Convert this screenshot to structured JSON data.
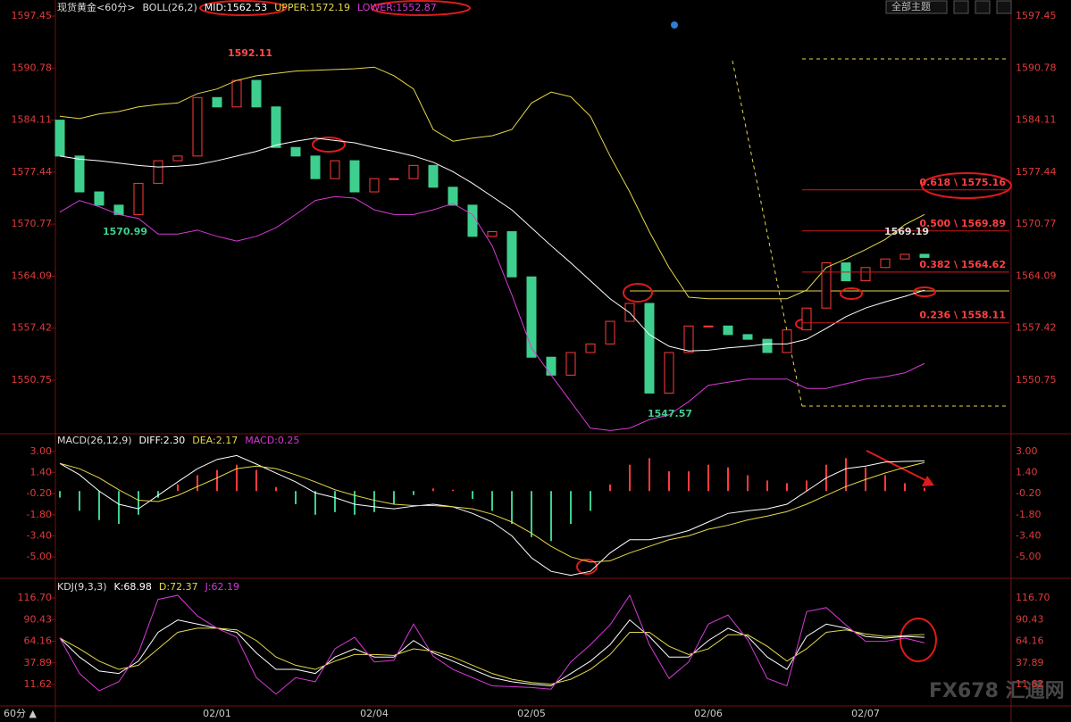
{
  "chart_data": [
    {
      "type": "candlestick",
      "title": "现货黄金<60分>",
      "indicator": "BOLL(26,2)",
      "categories": [
        null,
        null,
        null,
        null,
        null,
        null,
        null,
        null,
        "02/01",
        null,
        null,
        null,
        null,
        null,
        null,
        null,
        "02/04",
        null,
        null,
        null,
        null,
        null,
        null,
        null,
        "02/05",
        null,
        null,
        null,
        null,
        null,
        null,
        null,
        null,
        "02/06",
        null,
        null,
        null,
        null,
        null,
        null,
        null,
        "02/07",
        null,
        null,
        null
      ],
      "open": [
        1584.1,
        1579.5,
        1574.9,
        1573.2,
        1572.0,
        1576.0,
        1578.9,
        1579.5,
        1587.0,
        1585.8,
        1589.2,
        1585.8,
        1580.6,
        1579.5,
        1576.6,
        1578.9,
        1574.9,
        1576.6,
        1576.6,
        1578.3,
        1575.5,
        1573.2,
        1569.2,
        1569.8,
        1564.0,
        1553.7,
        1551.4,
        1554.3,
        1555.4,
        1558.3,
        1560.6,
        1549.1,
        1554.3,
        1557.7,
        1557.7,
        1556.6,
        1556.0,
        1554.3,
        1557.2,
        1560.0,
        1565.8,
        1563.5,
        1565.2,
        1566.3,
        1566.9
      ],
      "close": [
        1579.5,
        1574.9,
        1573.2,
        1572.0,
        1576.0,
        1578.9,
        1579.5,
        1587.0,
        1585.8,
        1589.2,
        1585.8,
        1580.6,
        1579.5,
        1576.6,
        1578.9,
        1574.9,
        1576.6,
        1576.6,
        1578.3,
        1575.5,
        1573.2,
        1569.2,
        1569.8,
        1564.0,
        1553.7,
        1551.4,
        1554.3,
        1555.4,
        1558.3,
        1560.6,
        1549.1,
        1554.3,
        1557.7,
        1557.7,
        1556.6,
        1556.0,
        1554.3,
        1557.2,
        1560.0,
        1565.8,
        1563.5,
        1565.2,
        1566.3,
        1566.9,
        1566.5
      ],
      "up_color": "#ff3b3b",
      "down_color": "#3ecf8e",
      "series": [
        {
          "name": "MID:1562.53",
          "color": "#ffffff",
          "values": [
            1579.5,
            1579.1,
            1578.9,
            1578.6,
            1578.3,
            1578.1,
            1578.2,
            1578.4,
            1578.9,
            1579.5,
            1580.1,
            1580.9,
            1581.4,
            1581.8,
            1581.5,
            1581.2,
            1580.6,
            1580.1,
            1579.5,
            1578.7,
            1577.5,
            1576.0,
            1574.3,
            1572.6,
            1570.3,
            1568.0,
            1565.8,
            1563.5,
            1561.2,
            1559.4,
            1556.6,
            1555.1,
            1554.5,
            1554.6,
            1554.9,
            1555.1,
            1555.4,
            1555.4,
            1556.0,
            1557.4,
            1558.9,
            1560.0,
            1560.8,
            1561.5,
            1562.3
          ]
        },
        {
          "name": "UPPER:1572.19",
          "color": "#e6d84a",
          "values": [
            1584.6,
            1584.3,
            1584.9,
            1585.2,
            1585.8,
            1586.1,
            1586.3,
            1587.5,
            1588.1,
            1589.2,
            1589.8,
            1590.1,
            1590.4,
            1590.5,
            1590.6,
            1590.7,
            1590.9,
            1589.8,
            1588.1,
            1582.9,
            1581.4,
            1581.8,
            1582.1,
            1582.9,
            1586.3,
            1587.7,
            1587.1,
            1584.6,
            1579.5,
            1574.9,
            1569.8,
            1565.2,
            1561.4,
            1561.2,
            1561.2,
            1561.2,
            1561.2,
            1561.2,
            1562.3,
            1565.2,
            1566.3,
            1567.5,
            1568.8,
            1570.7,
            1572.0
          ]
        },
        {
          "name": "LOWER:1552.87",
          "color": "#d63ad6",
          "values": [
            1572.3,
            1573.8,
            1573.0,
            1572.0,
            1571.5,
            1569.5,
            1569.5,
            1570.0,
            1569.2,
            1568.6,
            1569.2,
            1570.3,
            1572.0,
            1573.8,
            1574.3,
            1574.1,
            1572.6,
            1572.0,
            1572.0,
            1572.6,
            1573.4,
            1572.0,
            1568.0,
            1561.7,
            1554.9,
            1551.4,
            1548.0,
            1544.6,
            1544.3,
            1544.6,
            1545.7,
            1546.3,
            1548.0,
            1550.1,
            1550.5,
            1550.9,
            1550.9,
            1550.9,
            1549.7,
            1549.7,
            1550.3,
            1550.9,
            1551.2,
            1551.7,
            1552.9
          ]
        }
      ],
      "ylim": [
        1544.0,
        1597.45
      ],
      "yticks": [
        1597.45,
        1590.78,
        1584.11,
        1577.44,
        1570.77,
        1564.09,
        1557.42,
        1550.75
      ],
      "annotations": [
        "1592.11",
        "1570.99",
        "1547.57",
        "1569.19"
      ],
      "fib_levels": [
        {
          "value": 1575.16,
          "label": "0.618 \\ 1575.16"
        },
        {
          "value": 1569.89,
          "label": "0.500 \\ 1569.89"
        },
        {
          "value": 1564.62,
          "label": "0.382 \\ 1564.62"
        },
        {
          "value": 1558.11,
          "label": "0.236 \\ 1558.11"
        }
      ]
    },
    {
      "type": "macd",
      "title": "MACD(26,12,9)",
      "series": [
        {
          "name": "DIFF:2.30",
          "color": "#ffffff",
          "values": [
            2.1,
            1.24,
            0,
            -1.0,
            -1.35,
            -0.33,
            0.7,
            1.7,
            2.4,
            2.7,
            2.05,
            1.37,
            0.7,
            -0.14,
            -0.5,
            -1.0,
            -1.2,
            -1.35,
            -1.15,
            -1.0,
            -1.2,
            -1.7,
            -2.35,
            -3.4,
            -5.07,
            -6.1,
            -6.4,
            -6.1,
            -4.7,
            -3.7,
            -3.7,
            -3.4,
            -3.0,
            -2.35,
            -1.7,
            -1.5,
            -1.35,
            -1.0,
            0,
            1.0,
            1.7,
            1.9,
            2.2,
            2.25,
            2.3
          ]
        },
        {
          "name": "DEA:2.17",
          "color": "#e6d84a",
          "values": [
            2.1,
            1.7,
            1.0,
            0.1,
            -0.7,
            -0.8,
            -0.33,
            0.34,
            1.0,
            1.7,
            1.9,
            1.7,
            1.24,
            0.7,
            0.1,
            -0.33,
            -0.7,
            -1.0,
            -1.1,
            -1.1,
            -1.2,
            -1.35,
            -1.76,
            -2.35,
            -3.2,
            -4.2,
            -5.0,
            -5.4,
            -5.3,
            -4.7,
            -4.2,
            -3.7,
            -3.4,
            -2.9,
            -2.6,
            -2.2,
            -1.9,
            -1.56,
            -1.0,
            -0.33,
            0.34,
            0.88,
            1.37,
            1.8,
            2.17
          ]
        },
        {
          "name": "MACD:0.25",
          "color": "#d63ad6",
          "values": [
            -0.5,
            -1.5,
            -2.2,
            -2.5,
            -1.8,
            -0.5,
            0.5,
            1.2,
            1.6,
            2.0,
            1.6,
            0.3,
            -1.0,
            -1.8,
            -1.6,
            -1.8,
            -1.6,
            -1.0,
            -0.3,
            0.2,
            0.1,
            -0.6,
            -1.5,
            -2.5,
            -3.5,
            -3.8,
            -2.5,
            -1.5,
            0.5,
            2.0,
            2.5,
            1.5,
            1.5,
            2.0,
            1.8,
            1.2,
            0.8,
            0.6,
            0.8,
            2.0,
            2.5,
            1.8,
            1.2,
            0.6,
            0.25
          ]
        }
      ],
      "up_color": "#ff3b3b",
      "down_color": "#3ecf8e",
      "ylim": [
        -6.63,
        4.22
      ],
      "yticks": [
        {
          "value": 3,
          "label": "3.00"
        },
        {
          "value": 1.4,
          "label": "1.40"
        },
        {
          "value": -0.2,
          "label": "-0.20"
        },
        {
          "value": -1.8,
          "label": "-1.80"
        },
        {
          "value": -3.4,
          "label": "-3.40"
        },
        {
          "value": -5,
          "label": "-5.00"
        }
      ]
    },
    {
      "type": "line",
      "title": "KDJ(9,3,3)",
      "series": [
        {
          "name": "K:68.98",
          "color": "#ffffff",
          "values": [
            68,
            45,
            28,
            25,
            40,
            75,
            90,
            85,
            80,
            75,
            50,
            30,
            30,
            25,
            45,
            55,
            45,
            45,
            65,
            50,
            40,
            30,
            20,
            15,
            12,
            10,
            25,
            40,
            60,
            90,
            70,
            45,
            45,
            65,
            80,
            70,
            45,
            30,
            70,
            85,
            80,
            70,
            68,
            70,
            68.98
          ]
        },
        {
          "name": "D:72.37",
          "color": "#e6d84a",
          "values": [
            68,
            55,
            40,
            30,
            35,
            55,
            75,
            80,
            80,
            78,
            65,
            45,
            35,
            30,
            40,
            48,
            48,
            47,
            55,
            52,
            45,
            35,
            25,
            18,
            14,
            12,
            18,
            30,
            48,
            75,
            75,
            58,
            48,
            55,
            72,
            72,
            58,
            40,
            55,
            75,
            78,
            73,
            70,
            71,
            72.37
          ]
        },
        {
          "name": "J:62.19",
          "color": "#d63ad6",
          "values": [
            68,
            25,
            4,
            15,
            50,
            115,
            120,
            95,
            80,
            69,
            20,
            0,
            20,
            15,
            55,
            69,
            39,
            41,
            85,
            46,
            30,
            20,
            10,
            9,
            8,
            6,
            39,
            60,
            84,
            120,
            60,
            19,
            39,
            85,
            96,
            66,
            19,
            10,
            100,
            105,
            84,
            64,
            64,
            68,
            62.19
          ]
        }
      ],
      "ylim": [
        -13.3,
        138.4
      ],
      "yticks": [
        {
          "value": 116.7,
          "label": "116.70"
        },
        90.43,
        64.16,
        37.89,
        11.62
      ]
    }
  ],
  "toolbar": {
    "theme_button": "全部主题",
    "period": "60分 ▲"
  },
  "watermark": "FX678 汇通网"
}
